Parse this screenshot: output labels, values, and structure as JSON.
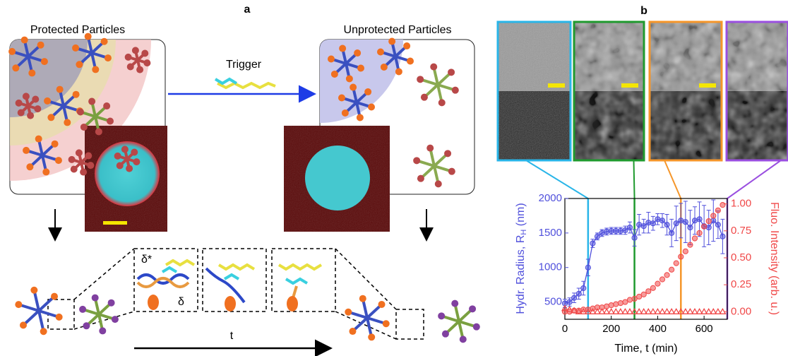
{
  "panel_labels": [
    "a",
    "b"
  ],
  "schematic": {
    "left_title": "Protected Particles",
    "right_title": "Unprotected Particles",
    "trigger": "Trigger",
    "delta_star": "δ*",
    "delta": "δ",
    "time": "t"
  },
  "chart_data": {
    "type": "scatter",
    "x_label": "Time, t (min)",
    "y_label": [
      "Hydr. Radius, R",
      "H",
      " (nm)"
    ],
    "y2_label": "Fluo. Intensity (arb. u.)",
    "xlim": [
      0,
      700
    ],
    "xticks": [
      0,
      200,
      400,
      600
    ],
    "ylim": [
      250,
      2000
    ],
    "yticks": [
      500,
      1000,
      1500,
      2000
    ],
    "y2lim": [
      -0.07,
      1.05
    ],
    "y2ticks": [
      {
        "value": 0,
        "label": "0.00"
      },
      0.25,
      {
        "value": 0.5,
        "label": "0.50"
      },
      0.75,
      {
        "value": 1,
        "label": "1.00"
      }
    ],
    "vlines": [
      {
        "value": 100,
        "color": "#29b5e8"
      },
      {
        "value": 300,
        "color": "#1f9a2e"
      },
      {
        "value": 500,
        "color": "#f5962a"
      },
      {
        "value": 700,
        "color": "#9a4fe0"
      }
    ],
    "x": [
      0,
      20,
      40,
      60,
      80,
      100,
      120,
      140,
      160,
      180,
      200,
      220,
      240,
      260,
      280,
      300,
      320,
      340,
      360,
      380,
      400,
      420,
      440,
      460,
      480,
      500,
      520,
      540,
      560,
      580,
      600,
      620,
      640,
      660,
      680
    ],
    "series": [
      {
        "color": "#5050dc",
        "marker": "circle",
        "line": true,
        "values": [
          480,
          500,
          560,
          620,
          700,
          1000,
          1350,
          1450,
          1500,
          1520,
          1530,
          1530,
          1530,
          1540,
          1580,
          1430,
          1620,
          1600,
          1650,
          1640,
          1700,
          1680,
          1620,
          1500,
          1640,
          1680,
          1660,
          1580,
          1680,
          1700,
          1600,
          1580,
          1680,
          1620,
          1450
        ],
        "errors": [
          60,
          60,
          70,
          80,
          100,
          120,
          60,
          50,
          50,
          50,
          50,
          50,
          50,
          60,
          80,
          120,
          150,
          100,
          150,
          100,
          80,
          100,
          150,
          200,
          250,
          250,
          300,
          250,
          200,
          250,
          300,
          250,
          300,
          200,
          250
        ]
      },
      {
        "color": "#f04848",
        "marker": "circle",
        "axis": "y2",
        "values": [
          0,
          0,
          0.01,
          0.01,
          0.02,
          0.02,
          0.03,
          0.04,
          0.04,
          0.05,
          0.06,
          0.07,
          0.08,
          0.09,
          0.11,
          0.12,
          0.14,
          0.16,
          0.19,
          0.22,
          0.26,
          0.3,
          0.34,
          0.39,
          0.45,
          0.51,
          0.56,
          0.62,
          0.68,
          0.73,
          0.79,
          0.84,
          0.89,
          0.94,
          0.99
        ]
      },
      {
        "color": "#f04848",
        "marker": "triangle",
        "axis": "y2",
        "values": [
          0.03,
          0.02,
          0.01,
          0,
          0,
          0,
          0,
          0,
          0,
          0,
          0,
          0,
          0,
          0,
          0,
          0,
          0,
          0,
          0,
          0,
          0,
          0,
          0,
          0,
          0,
          0,
          0,
          0,
          0,
          0,
          0,
          0,
          0,
          0,
          0
        ]
      }
    ]
  }
}
